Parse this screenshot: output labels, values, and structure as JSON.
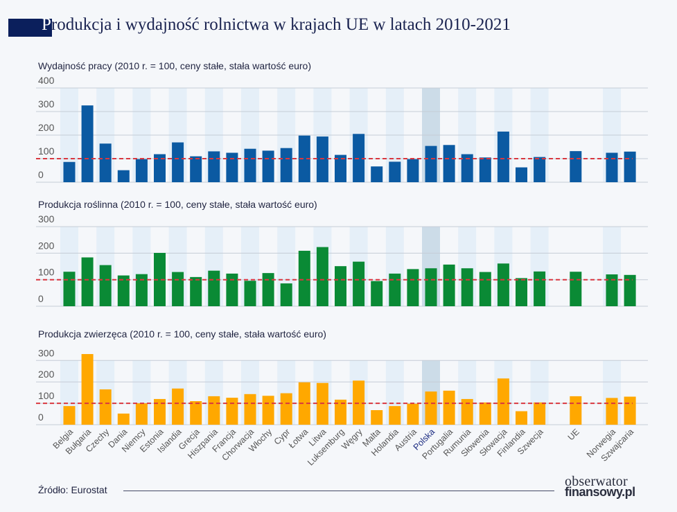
{
  "title": {
    "first_letter": "P",
    "rest": "rodukcja i wydajność rolnictwa w krajach UE w latach 2010-2021"
  },
  "source": "Źródło: Eurostat",
  "logo": {
    "line1": "obserwator",
    "line2": "finansowy.pl"
  },
  "colors": {
    "labor": "#0b5aa2",
    "crop": "#0a8a35",
    "animal": "#ffa800",
    "reference_line": "#d9373f",
    "band": "#e3edf7",
    "highlight_band": "#c8d8e6",
    "highlight_label": "#1a2a80"
  },
  "chart_data": [
    {
      "type": "bar",
      "title": "Wydajność pracy (2010 r. = 100, ceny stałe, stała wartość euro)",
      "categories": [
        "Belgia",
        "Bułgaria",
        "Czechy",
        "Dania",
        "Niemcy",
        "Estonia",
        "Islandia",
        "Grecja",
        "Hiszpania",
        "Francja",
        "Chorwacja",
        "Włochy",
        "Cypr",
        "Łotwa",
        "Litwa",
        "Luksemburg",
        "Węgry",
        "Malta",
        "Holandia",
        "Austria",
        "Polska",
        "Portugalia",
        "Rumunia",
        "Słowenia",
        "Słowacja",
        "Finlandia",
        "Szwecja",
        "UE",
        "Norwegia",
        "Szwajcaria"
      ],
      "values": [
        86,
        326,
        164,
        51,
        98,
        119,
        169,
        110,
        131,
        125,
        142,
        134,
        145,
        198,
        194,
        116,
        205,
        67,
        87,
        98,
        154,
        158,
        119,
        105,
        215,
        63,
        107,
        132,
        125,
        130
      ],
      "yticks": [
        0,
        100,
        200,
        300,
        400
      ],
      "ylim": [
        0,
        400
      ],
      "reference_line": 100,
      "color": "#0b5aa2"
    },
    {
      "type": "bar",
      "title": "Produkcja roślinna (2010 r. = 100, ceny stałe, stała wartość euro)",
      "categories": [
        "Belgia",
        "Bułgaria",
        "Czechy",
        "Dania",
        "Niemcy",
        "Estonia",
        "Islandia",
        "Grecja",
        "Hiszpania",
        "Francja",
        "Chorwacja",
        "Włochy",
        "Cypr",
        "Łotwa",
        "Litwa",
        "Luksemburg",
        "Węgry",
        "Malta",
        "Holandia",
        "Austria",
        "Polska",
        "Portugalia",
        "Rumunia",
        "Słowenia",
        "Słowacja",
        "Finlandia",
        "Szwecja",
        "UE",
        "Norwegia",
        "Szwajcaria"
      ],
      "values": [
        130,
        184,
        155,
        116,
        121,
        201,
        129,
        110,
        134,
        123,
        96,
        125,
        86,
        209,
        223,
        151,
        168,
        95,
        123,
        140,
        143,
        157,
        143,
        129,
        161,
        106,
        131,
        130,
        120,
        118
      ],
      "yticks": [
        0,
        100,
        200,
        300
      ],
      "ylim": [
        0,
        300
      ],
      "reference_line": 100,
      "color": "#0a8a35"
    },
    {
      "type": "bar",
      "title": "Produkcja zwierzęca (2010 r. = 100, ceny stałe, stała wartość euro)",
      "categories": [
        "Belgia",
        "Bułgaria",
        "Czechy",
        "Dania",
        "Niemcy",
        "Estonia",
        "Islandia",
        "Grecja",
        "Hiszpania",
        "Francja",
        "Chorwacja",
        "Włochy",
        "Cypr",
        "Łotwa",
        "Litwa",
        "Luksemburg",
        "Węgry",
        "Malta",
        "Holandia",
        "Austria",
        "Polska",
        "Portugalia",
        "Rumunia",
        "Słowenia",
        "Słowacja",
        "Finlandia",
        "Szwecja",
        "UE",
        "Norwegia",
        "Szwajcaria"
      ],
      "values": [
        87,
        330,
        165,
        52,
        100,
        120,
        169,
        110,
        133,
        126,
        143,
        135,
        147,
        198,
        195,
        117,
        206,
        68,
        87,
        98,
        155,
        159,
        120,
        104,
        216,
        63,
        104,
        133,
        125,
        131
      ],
      "yticks": [
        0,
        100,
        200,
        300
      ],
      "ylim": [
        0,
        300
      ],
      "reference_line": 100,
      "color": "#ffa800"
    }
  ],
  "highlighted_category": "Polska"
}
